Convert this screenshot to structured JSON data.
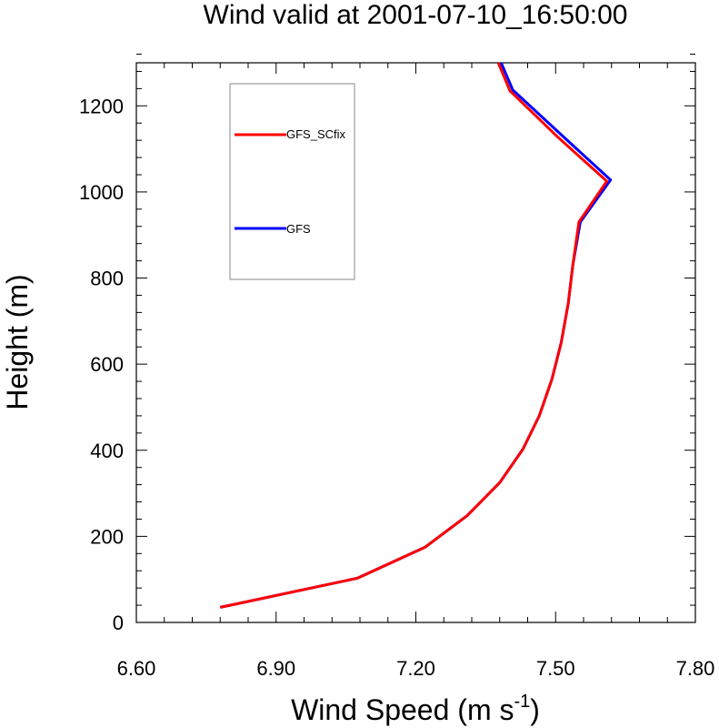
{
  "chart_data": {
    "type": "line",
    "title": "Wind valid at 2001-07-10_16:50:00",
    "xlabel": "Wind Speed (m s",
    "xlabel_superscript": "-1",
    "xlabel_suffix": ")",
    "ylabel": "Height (m)",
    "xlim": [
      6.6,
      7.8
    ],
    "ylim": [
      0,
      1300
    ],
    "xticks": [
      6.6,
      6.9,
      7.2,
      7.5,
      7.8
    ],
    "xtick_labels": [
      "6.60",
      "6.90",
      "7.20",
      "7.50",
      "7.80"
    ],
    "yticks": [
      0,
      200,
      400,
      600,
      800,
      1000,
      1200
    ],
    "ytick_labels": [
      "0",
      "200",
      "400",
      "600",
      "800",
      "1000",
      "1200"
    ],
    "grid": false,
    "legend_position": "top-left",
    "series": [
      {
        "name": "GFS",
        "color": "#0000ff",
        "points": [
          [
            6.78,
            35
          ],
          [
            7.075,
            103
          ],
          [
            7.22,
            175
          ],
          [
            7.31,
            248
          ],
          [
            7.38,
            325
          ],
          [
            7.43,
            403
          ],
          [
            7.465,
            480
          ],
          [
            7.492,
            565
          ],
          [
            7.512,
            650
          ],
          [
            7.527,
            740
          ],
          [
            7.537,
            830
          ],
          [
            7.553,
            930
          ],
          [
            7.618,
            1028
          ],
          [
            7.513,
            1132
          ],
          [
            7.408,
            1237
          ],
          [
            7.383,
            1300
          ]
        ]
      },
      {
        "name": "GFS_SCfix",
        "color": "#ff0000",
        "points": [
          [
            6.78,
            35
          ],
          [
            7.075,
            103
          ],
          [
            7.22,
            175
          ],
          [
            7.31,
            248
          ],
          [
            7.38,
            325
          ],
          [
            7.43,
            403
          ],
          [
            7.465,
            480
          ],
          [
            7.492,
            565
          ],
          [
            7.512,
            650
          ],
          [
            7.527,
            740
          ],
          [
            7.537,
            830
          ],
          [
            7.55,
            930
          ],
          [
            7.61,
            1025
          ],
          [
            7.505,
            1127
          ],
          [
            7.402,
            1235
          ],
          [
            7.377,
            1300
          ]
        ]
      }
    ],
    "legend": [
      {
        "label": "GFS_SCfix",
        "color": "#ff0000"
      },
      {
        "label": "GFS",
        "color": "#0000ff"
      }
    ]
  }
}
